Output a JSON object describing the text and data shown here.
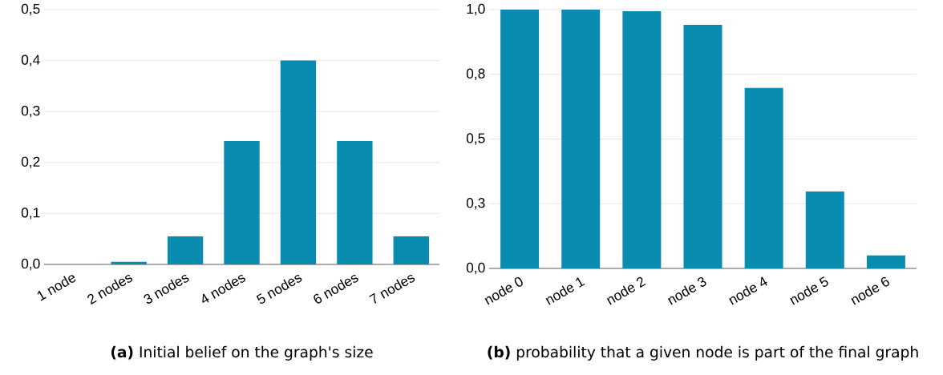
{
  "chart_data": [
    {
      "type": "bar",
      "categories": [
        "1 node",
        "2 nodes",
        "3 nodes",
        "4 nodes",
        "5 nodes",
        "6 nodes",
        "7 nodes"
      ],
      "values": [
        0,
        0.005,
        0.055,
        0.242,
        0.4,
        0.242,
        0.055
      ],
      "color": "#0a8cb0",
      "ylim": [
        0,
        0.5
      ],
      "yticks": [
        {
          "value": 0,
          "label": "0,0"
        },
        {
          "value": 0.1,
          "label": "0,1"
        },
        {
          "value": 0.2,
          "label": "0,2"
        },
        {
          "value": 0.3,
          "label": "0,3"
        },
        {
          "value": 0.4,
          "label": "0,4"
        },
        {
          "value": 0.5,
          "label": "0,5"
        }
      ],
      "grid": "y",
      "annotations": [
        "**(a)** Initial belief on the graph's size"
      ]
    },
    {
      "type": "bar",
      "categories": [
        "node 0",
        "node 1",
        "node 2",
        "node 3",
        "node 4",
        "node 5",
        "node 6"
      ],
      "values": [
        1.0,
        1.0,
        0.994,
        0.941,
        0.697,
        0.297,
        0.05
      ],
      "color": "#0a8cb0",
      "ylim": [
        0,
        1
      ],
      "yticks": [
        {
          "value": 0,
          "label": "0,0"
        },
        {
          "value": 0.25,
          "label": "0,3"
        },
        {
          "value": 0.5,
          "label": "0,5"
        },
        {
          "value": 0.75,
          "label": "0,8"
        },
        {
          "value": 1,
          "label": "1,0"
        }
      ],
      "grid": "y",
      "annotations": [
        "**(b)** probability that a given node is part of the final graph"
      ]
    }
  ]
}
